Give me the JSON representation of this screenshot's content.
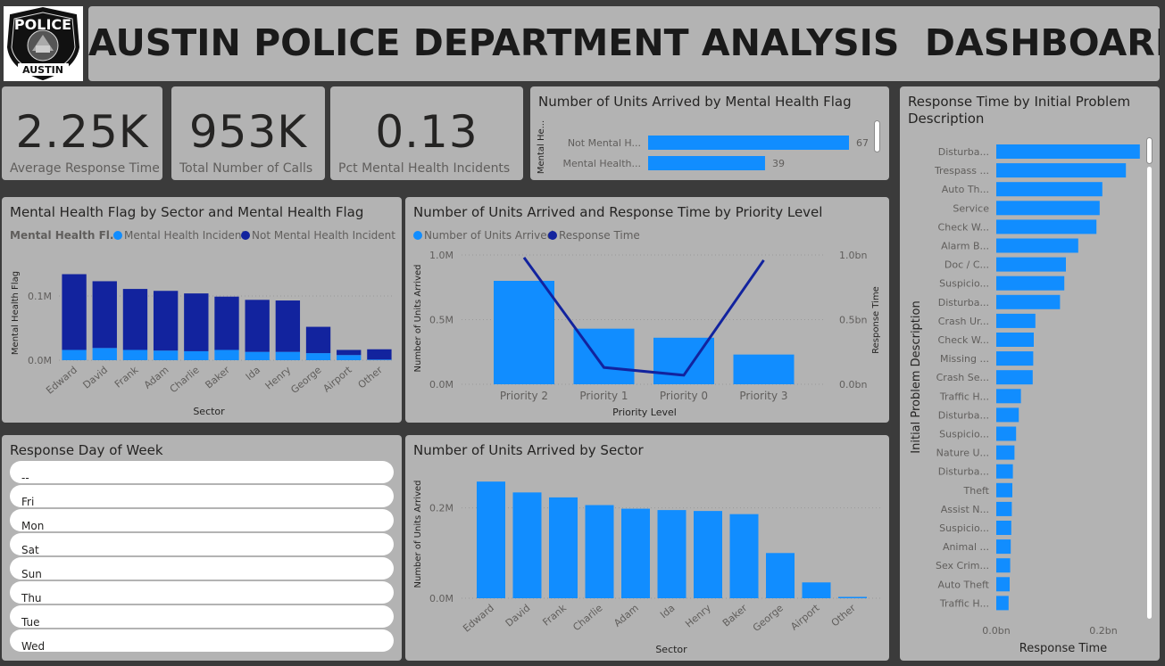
{
  "header": {
    "logo": {
      "top_text": "POLICE",
      "bottom_text": "AUSTIN"
    },
    "title": "AUSTIN POLICE DEPARTMENT ANALYSIS  DASHBOARD"
  },
  "kpis": [
    {
      "value": "2.25K",
      "label": "Average Response Time"
    },
    {
      "value": "953K",
      "label": "Total Number of Calls"
    },
    {
      "value": "0.13",
      "label": "Pct Mental Health Incidents"
    }
  ],
  "colors": {
    "light_blue": "#118dff",
    "dark_blue": "#12239e",
    "panel": "#b3b3b3",
    "background": "#3b3b3b"
  },
  "charts": {
    "units_by_mh_flag": {
      "title": "Number of Units Arrived by Mental Health Flag",
      "axis_label": "Mental He...",
      "chart_data": {
        "type": "bar",
        "orientation": "horizontal",
        "categories": [
          "Not Mental H...",
          "Mental Health..."
        ],
        "values": [
          67,
          39
        ],
        "value_labels": [
          "67",
          "39"
        ]
      }
    },
    "mh_by_sector": {
      "title": "Mental Health Flag by Sector and Mental Health Flag",
      "legend_title": "Mental Health Fl...",
      "legend": [
        "Mental Health Incident",
        "Not Mental Health Incident"
      ],
      "chart_data": {
        "type": "bar",
        "stacked": true,
        "categories": [
          "Edward",
          "David",
          "Frank",
          "Adam",
          "Charlie",
          "Baker",
          "Ida",
          "Henry",
          "George",
          "Airport",
          "Other"
        ],
        "series": [
          {
            "name": "Mental Health Incident",
            "values": [
              0.016,
              0.019,
              0.016,
              0.015,
              0.014,
              0.016,
              0.013,
              0.013,
              0.011,
              0.008,
              0.001
            ]
          },
          {
            "name": "Not Mental Health Incident",
            "values": [
              0.118,
              0.104,
              0.095,
              0.093,
              0.09,
              0.083,
              0.081,
              0.08,
              0.041,
              0.008,
              0.016
            ]
          }
        ],
        "y_ticks": [
          0,
          0.1
        ],
        "y_tick_labels": [
          "0.0M",
          "0.1M"
        ],
        "ylim": [
          0,
          0.15
        ],
        "xlabel": "Sector",
        "ylabel": "Mental Health Flag"
      }
    },
    "priority": {
      "title": "Number of Units Arrived and Response Time by Priority Level",
      "legend": [
        "Number of Units Arrived",
        "Response Time"
      ],
      "chart_data": {
        "type": "bar",
        "combo": "bar+line",
        "categories": [
          "Priority 2",
          "Priority 1",
          "Priority 0",
          "Priority 3"
        ],
        "series": [
          {
            "name": "Number of Units Arrived",
            "type": "bar",
            "values": [
              0.8,
              0.43,
              0.36,
              0.23
            ]
          },
          {
            "name": "Response Time",
            "type": "line",
            "values": [
              0.98,
              0.13,
              0.07,
              0.96
            ]
          }
        ],
        "y_ticks": [
          0,
          0.5,
          1.0
        ],
        "y_tick_labels": [
          "0.0M",
          "0.5M",
          "1.0M"
        ],
        "y2_tick_labels": [
          "0.0bn",
          "0.5bn",
          "1.0bn"
        ],
        "ylim": [
          0,
          1.0
        ],
        "xlabel": "Priority Level",
        "ylabel": "Number of Units Arrived",
        "y2label": "Response Time"
      }
    },
    "day_of_week": {
      "title": "Response Day of Week",
      "items": [
        "--",
        "Fri",
        "Mon",
        "Sat",
        "Sun",
        "Thu",
        "Tue",
        "Wed"
      ]
    },
    "units_by_sector": {
      "title": "Number of Units Arrived by Sector",
      "chart_data": {
        "type": "bar",
        "categories": [
          "Edward",
          "David",
          "Frank",
          "Charlie",
          "Adam",
          "Ida",
          "Henry",
          "Baker",
          "George",
          "Airport",
          "Other"
        ],
        "values": [
          0.258,
          0.234,
          0.223,
          0.206,
          0.198,
          0.195,
          0.193,
          0.186,
          0.1,
          0.035,
          0.003
        ],
        "y_ticks": [
          0,
          0.2
        ],
        "y_tick_labels": [
          "0.0M",
          "0.2M"
        ],
        "ylim": [
          0,
          0.28
        ],
        "xlabel": "Sector",
        "ylabel": "Number of Units Arrived"
      }
    },
    "response_by_problem": {
      "title": "Response Time by Initial Problem Description",
      "chart_data": {
        "type": "bar",
        "orientation": "horizontal",
        "categories": [
          "Disturba...",
          "Trespass ...",
          "Auto Th...",
          "Service",
          "Check W...",
          "Alarm B...",
          "Doc / C...",
          "Suspicio...",
          "Disturba...",
          "Crash Ur...",
          "Check W...",
          "Missing ...",
          "Crash Se...",
          "Traffic H...",
          "Disturba...",
          "Suspicio...",
          "Nature U...",
          "Disturba...",
          "Theft",
          "Assist N...",
          "Suspicio...",
          "Animal ...",
          "Sex Crim...",
          "Auto Theft",
          "Traffic H..."
        ],
        "values": [
          0.268,
          0.242,
          0.198,
          0.193,
          0.187,
          0.153,
          0.13,
          0.127,
          0.119,
          0.073,
          0.07,
          0.069,
          0.068,
          0.046,
          0.042,
          0.037,
          0.034,
          0.031,
          0.03,
          0.029,
          0.028,
          0.027,
          0.026,
          0.025,
          0.023
        ],
        "x_ticks": [
          0,
          0.2
        ],
        "x_tick_labels": [
          "0.0bn",
          "0.2bn"
        ],
        "xlim": [
          0,
          0.3
        ],
        "xlabel": "Response Time",
        "ylabel": "Initial Problem Description"
      }
    }
  }
}
